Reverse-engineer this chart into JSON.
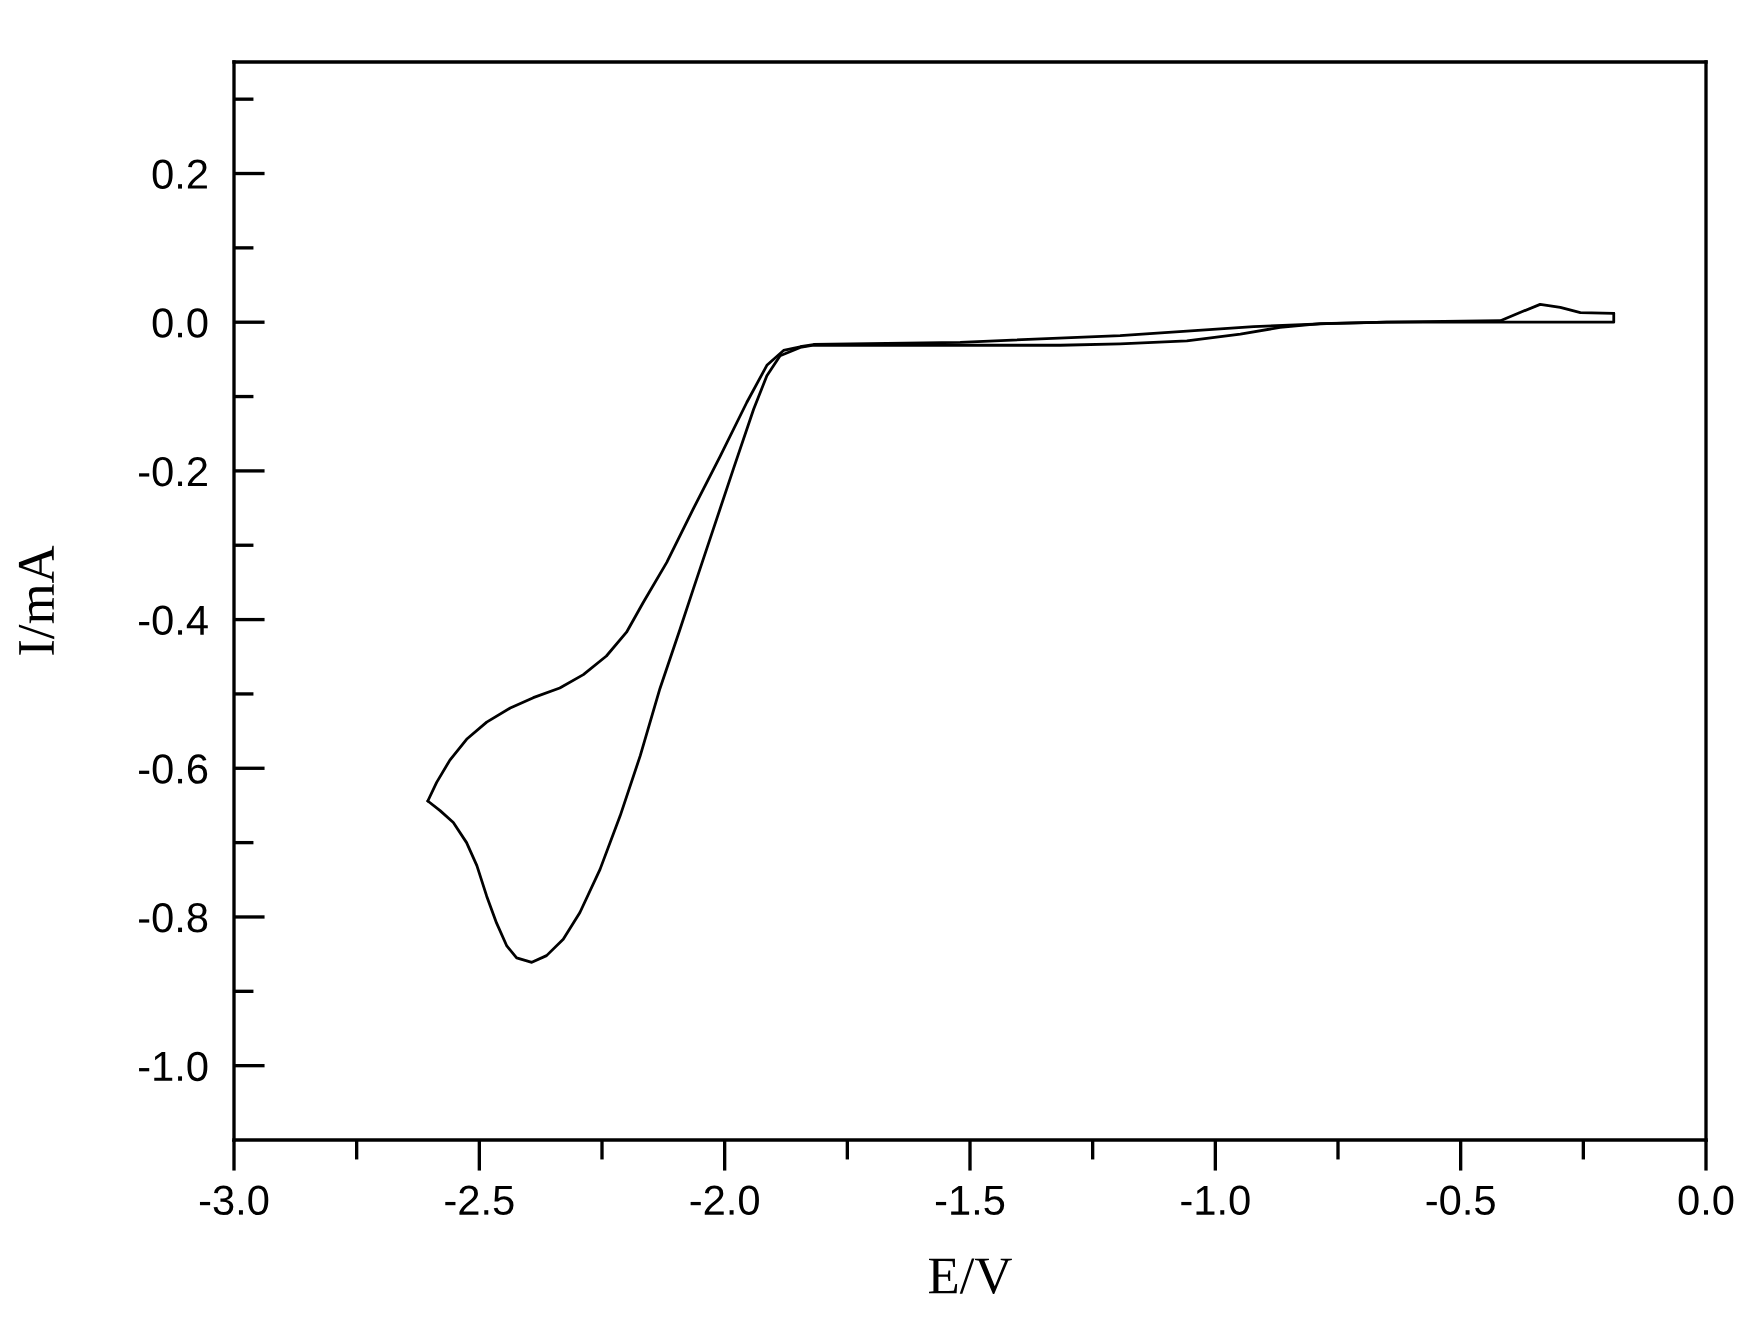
{
  "chart_data": {
    "type": "line",
    "xlabel": "E/V",
    "ylabel": "I/mA",
    "xlim": [
      -3.0,
      0.0
    ],
    "ylim": [
      -1.1,
      0.35
    ],
    "xticks": [
      {
        "value": -3,
        "label": "-3.0"
      },
      {
        "value": -2.75,
        "label": null
      },
      -2.5,
      {
        "value": -2.25,
        "label": null
      },
      {
        "value": -2,
        "label": "-2.0"
      },
      {
        "value": -1.75,
        "label": null
      },
      -1.5,
      {
        "value": -1.25,
        "label": null
      },
      {
        "value": -1,
        "label": "-1.0"
      },
      {
        "value": -0.75,
        "label": null
      },
      -0.5,
      {
        "value": -0.25,
        "label": null
      },
      {
        "value": 0,
        "label": "0.0"
      }
    ],
    "yticks": [
      {
        "value": -1,
        "label": "-1.0"
      },
      {
        "value": -0.9,
        "label": null
      },
      -0.8,
      {
        "value": -0.7,
        "label": null
      },
      -0.6,
      {
        "value": -0.5,
        "label": null
      },
      -0.4,
      {
        "value": -0.3,
        "label": null
      },
      -0.2,
      {
        "value": -0.1,
        "label": null
      },
      {
        "value": 0,
        "label": "0.0"
      },
      {
        "value": 0.1,
        "label": null
      },
      0.2,
      {
        "value": 0.3,
        "label": null
      }
    ],
    "series": [
      {
        "color": "#000000",
        "line_style": "solid",
        "x": [
          -2.605,
          -2.58,
          -2.553,
          -2.526,
          -2.505,
          -2.485,
          -2.465,
          -2.444,
          -2.424,
          -2.393,
          -2.363,
          -2.329,
          -2.295,
          -2.254,
          -2.213,
          -2.172,
          -2.132,
          -2.091,
          -2.064,
          -2.023,
          -1.982,
          -1.941,
          -1.914,
          -1.887,
          -1.846,
          -1.819,
          -1.52,
          -1.316,
          -1.194,
          -1.058,
          -0.949,
          -0.868,
          -0.786,
          -0.651,
          -0.419,
          -0.188,
          -0.188
        ],
        "values": [
          -0.644,
          -0.657,
          -0.673,
          -0.7,
          -0.731,
          -0.772,
          -0.808,
          -0.839,
          -0.855,
          -0.861,
          -0.852,
          -0.83,
          -0.794,
          -0.736,
          -0.664,
          -0.583,
          -0.493,
          -0.413,
          -0.359,
          -0.278,
          -0.197,
          -0.117,
          -0.072,
          -0.045,
          -0.034,
          -0.031,
          -0.031,
          -0.031,
          -0.029,
          -0.025,
          -0.016,
          -0.007,
          -0.002,
          0.0,
          0.0,
          0.0,
          0.012
        ]
      },
      {
        "color": "#000000",
        "line_style": "solid",
        "x": [
          -2.605,
          -2.587,
          -2.56,
          -2.526,
          -2.485,
          -2.437,
          -2.39,
          -2.336,
          -2.288,
          -2.241,
          -2.2,
          -2.166,
          -2.118,
          -2.064,
          -2.009,
          -1.955,
          -1.914,
          -1.88,
          -1.846,
          -1.819,
          -1.52,
          -1.194,
          -1.058,
          -0.922,
          -0.773,
          -0.651,
          -0.419,
          -0.379,
          -0.338,
          -0.297,
          -0.256,
          -0.188
        ],
        "values": [
          -0.644,
          -0.619,
          -0.589,
          -0.561,
          -0.538,
          -0.519,
          -0.505,
          -0.492,
          -0.474,
          -0.449,
          -0.417,
          -0.377,
          -0.323,
          -0.251,
          -0.18,
          -0.108,
          -0.058,
          -0.038,
          -0.033,
          -0.03,
          -0.027,
          -0.018,
          -0.012,
          -0.006,
          -0.002,
          0.0,
          0.002,
          0.013,
          0.024,
          0.02,
          0.013,
          0.012
        ]
      }
    ]
  }
}
